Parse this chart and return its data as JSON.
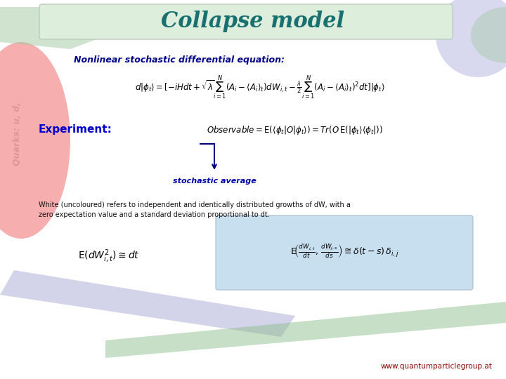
{
  "title": "Collapse model",
  "title_color": "#1a7070",
  "title_fontsize": 22,
  "bg_color": "#ffffff",
  "nlabel": "Nonlinear stochastic differential equation:",
  "nlabel_color": "#00008B",
  "nlabel_fontsize": 9,
  "experiment_label": "Experiment:",
  "experiment_color": "#0000cc",
  "experiment_fontsize": 11,
  "stochastic_label": "stochastic average",
  "stochastic_color": "#0000aa",
  "stochastic_fontsize": 8,
  "white_noise_line1": "White (uncoloured) refers to independent and identically distributed growths of dW, with a",
  "white_noise_line2": "zero expectation value and a standard deviation proportional to dt.",
  "white_noise_color": "#111111",
  "white_noise_fontsize": 7,
  "url_text": "www.quantumparticlegroup.at",
  "url_color": "#8B0000",
  "url_fontsize": 7.5,
  "box_bg": "#c8dff0",
  "title_bar_color": "#ddeedd",
  "title_bar_edge": "#bbccbb",
  "eq1": "d|\\phi_t\\rangle = [-iHdt + \\sqrt{\\lambda}\\sum_{i=1}^{N}(A_i - \\langle A_i\\rangle_t)dW_{i,t} - \\frac{\\lambda}{2}\\sum_{i=1}^{N}(A_i - \\langle A_i\\rangle_t)^2 dt]|\\phi_t\\rangle",
  "eq1_fontsize": 8.5,
  "eq2": "\\mathit{Observable} = \\mathrm{E}(\\langle\\phi_t|O|\\phi_t\\rangle) = \\mathit{Tr}(O\\,\\mathrm{E}(|\\phi_t\\rangle\\langle\\phi_t|))",
  "eq2_fontsize": 8.5,
  "eq3": "\\mathrm{E}(dW_{i,t}^{2}) \\cong dt",
  "eq3_fontsize": 10,
  "eq4": "\\mathrm{E}\\!\\left(\\frac{dW_{i,t}}{dt},\\,\\frac{dW_{j,s}}{ds}\\right) \\cong \\delta(t-s)\\,\\delta_{i,j}",
  "eq4_fontsize": 9,
  "left_blob_color": "#f5a0a0",
  "right_blob_color": "#c8c8e8",
  "green_blob_color": "#a0c8a0",
  "purple_diag_color": "#b0b0d8",
  "green_diag_color": "#90c090"
}
